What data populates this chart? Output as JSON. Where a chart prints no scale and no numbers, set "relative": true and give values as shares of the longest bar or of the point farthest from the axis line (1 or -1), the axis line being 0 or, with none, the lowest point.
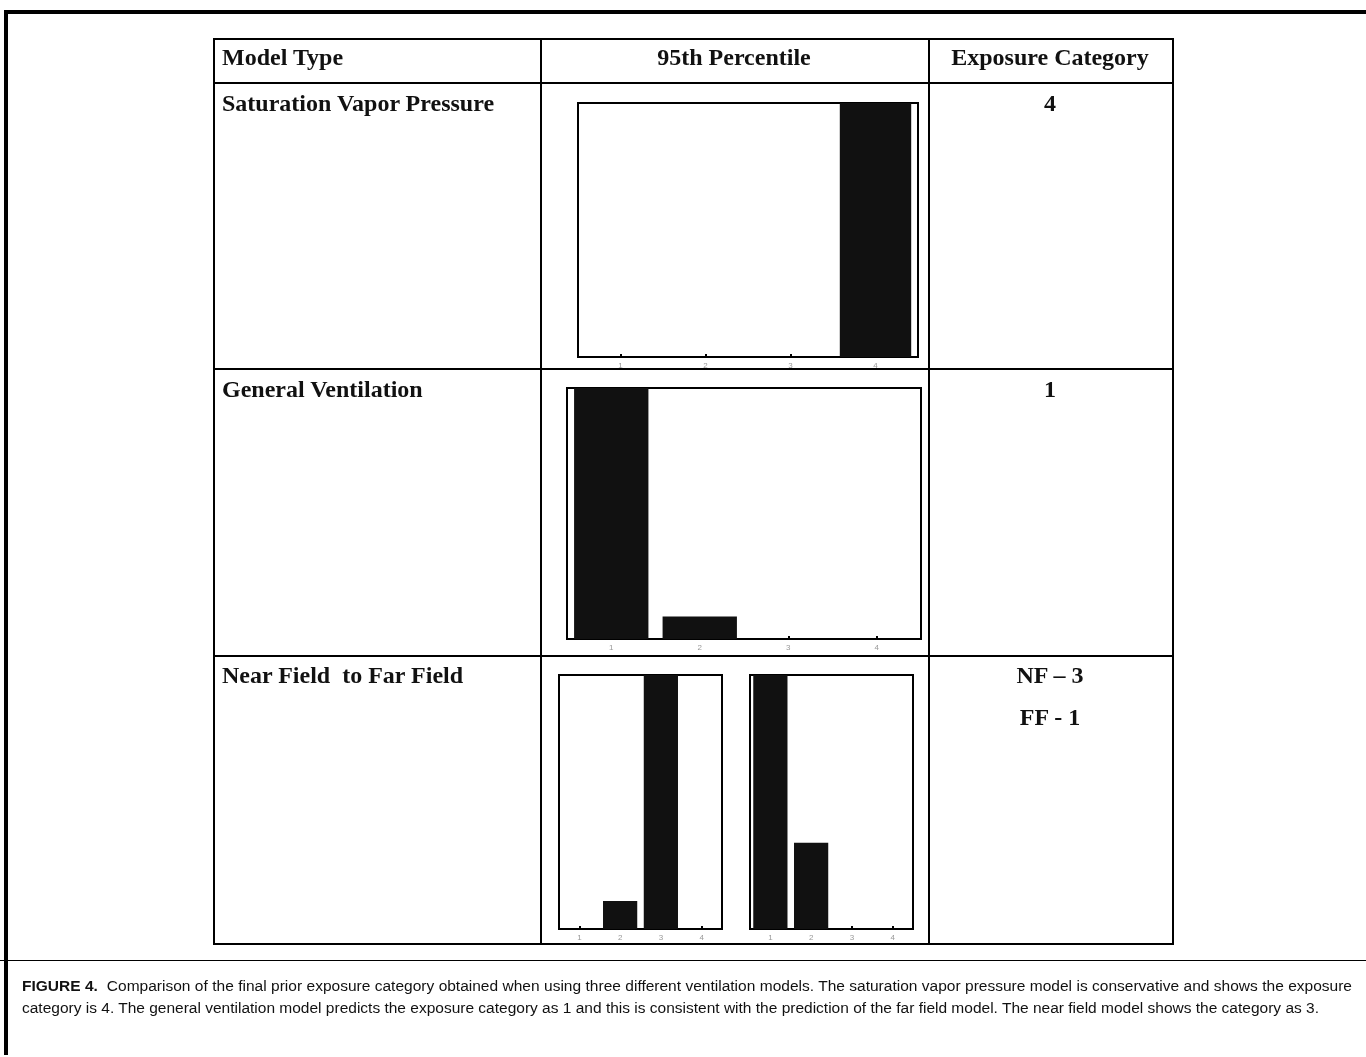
{
  "chart_data": [
    {
      "type": "other",
      "annotations": [
        "Model Type",
        "95th Percentile",
        "Exposure Category",
        "Saturation Vapor Pressure",
        "4",
        "General Ventilation",
        "1",
        "Near Field  to Far Field",
        "NF – 3",
        "FF - 1",
        "FIGURE 4.",
        "Comparison of the final prior exposure category obtained when using three different ventilation models. The saturation vapor pressure model is conservative and shows the exposure category is 4. The general ventilation model predicts the exposure category as 1 and this is consistent with the prediction of the far field model. The near field model shows the category as 3."
      ]
    },
    {
      "type": "bar",
      "relative": true,
      "categories": [
        "1",
        "2",
        "3",
        "4"
      ],
      "values": [
        0,
        0,
        0,
        1
      ],
      "color": "#111111",
      "tick_labels": "x"
    },
    {
      "type": "bar",
      "relative": true,
      "categories": [
        "1",
        "2",
        "3",
        "4"
      ],
      "values": [
        1,
        0.09,
        0,
        0
      ],
      "color": "#111111",
      "tick_labels": "x"
    },
    {
      "type": "bar",
      "relative": true,
      "categories": [
        "1",
        "2",
        "3",
        "4"
      ],
      "values": [
        0,
        0.11,
        1,
        0
      ],
      "color": "#111111",
      "tick_labels": "x"
    },
    {
      "type": "bar",
      "relative": true,
      "categories": [
        "1",
        "2",
        "3",
        "4"
      ],
      "values": [
        1,
        0.34,
        0,
        0
      ],
      "color": "#111111",
      "tick_labels": "x"
    }
  ]
}
